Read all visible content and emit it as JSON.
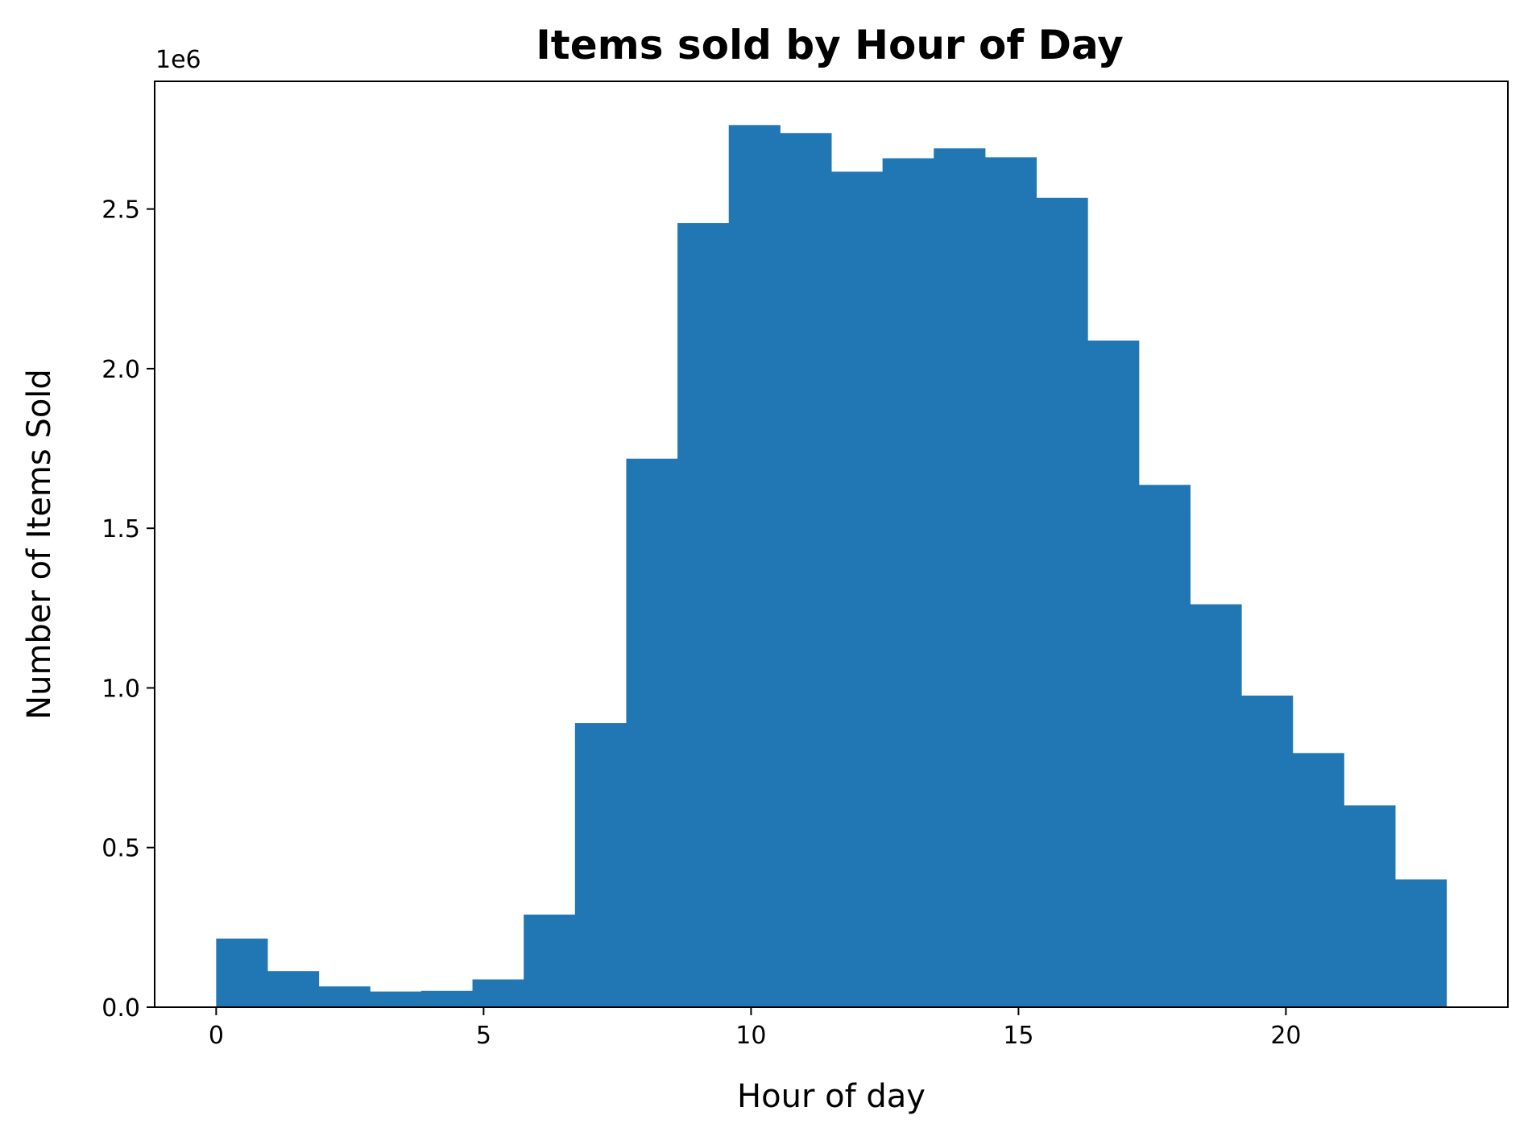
{
  "chart_data": {
    "type": "bar",
    "title": "Items sold by Hour of Day",
    "xlabel": "Hour of day",
    "ylabel": "Number of Items Sold",
    "y_offset_label": "1e6",
    "bar_color": "#2077b4",
    "bin_width": 0.9583,
    "bins_start": [
      0,
      0.9583,
      1.9167,
      2.875,
      3.8333,
      4.7917,
      5.75,
      6.7083,
      7.6667,
      8.625,
      9.5833,
      10.5417,
      11.5,
      12.4583,
      13.4167,
      14.375,
      15.3333,
      16.2917,
      17.25,
      18.2083,
      19.1667,
      20.125,
      21.0833,
      22.0417
    ],
    "values": [
      215000,
      113000,
      65000,
      49000,
      51000,
      87000,
      290000,
      890000,
      1718000,
      2456000,
      2763000,
      2738000,
      2617000,
      2659000,
      2690000,
      2662000,
      2535000,
      2088000,
      1636000,
      1262000,
      976000,
      796000,
      632000,
      400000
    ],
    "xlim": [
      -1.15,
      24.15
    ],
    "ylim": [
      0,
      2900000
    ],
    "xticks": [
      0,
      5,
      10,
      15,
      20
    ],
    "xtick_labels": [
      "0",
      "5",
      "10",
      "15",
      "20"
    ],
    "yticks": [
      0,
      500000,
      1000000,
      1500000,
      2000000,
      2500000
    ],
    "ytick_labels": [
      "0.0",
      "0.5",
      "1.0",
      "1.5",
      "2.0",
      "2.5"
    ],
    "grid": false,
    "legend": "none"
  }
}
